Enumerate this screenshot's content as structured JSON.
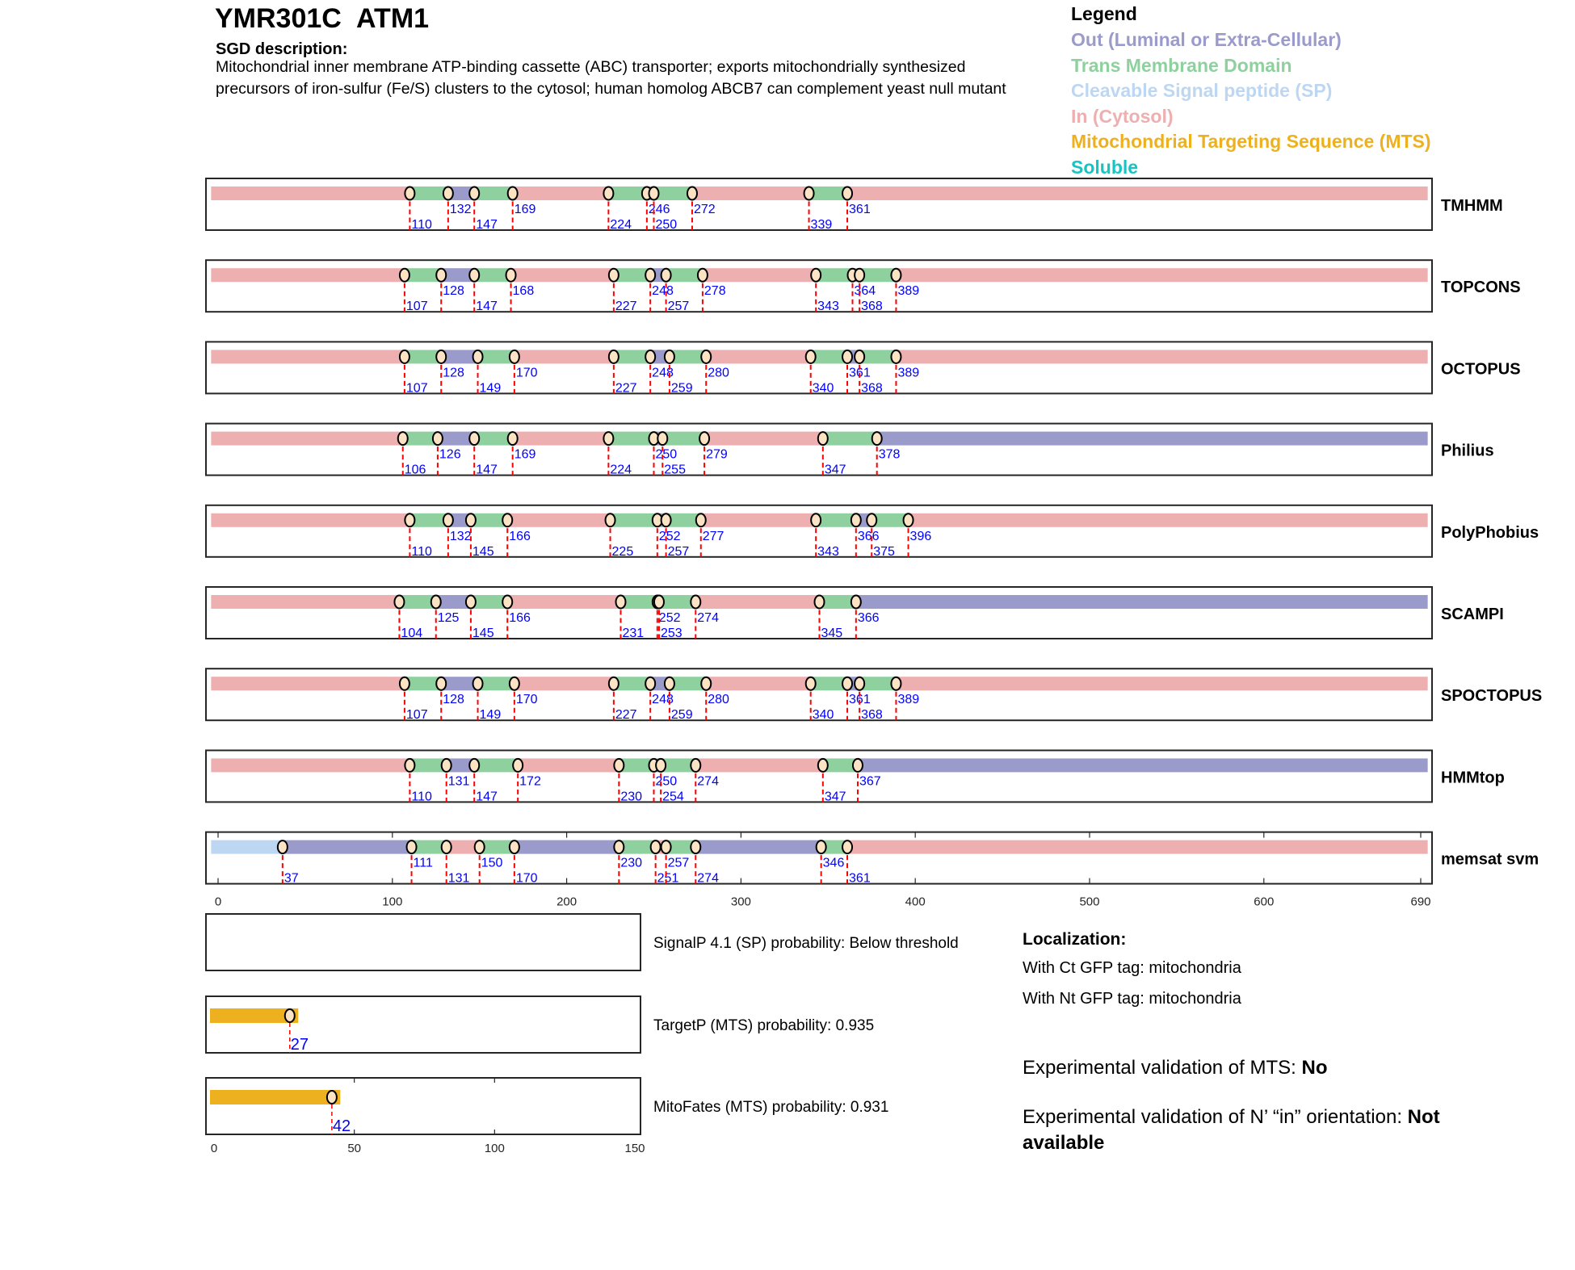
{
  "header": {
    "title": "YMR301C  ATM1",
    "sgd_heading": "SGD description:",
    "sgd_description": "Mitochondrial inner membrane ATP-binding cassette (ABC) transporter; exports mitochondrially synthesized precursors of iron-sulfur (Fe/S) clusters to the cytosol; human homolog ABCB7 can complement yeast null mutant"
  },
  "legend": {
    "title": "Legend",
    "items": [
      {
        "key": "out",
        "label": "Out (Luminal or Extra-Cellular)",
        "color": "#9b9bcb"
      },
      {
        "key": "tm",
        "label": "Trans Membrane Domain",
        "color": "#8fd19e"
      },
      {
        "key": "sp",
        "label": "Cleavable Signal peptide (SP)",
        "color": "#bdd7f3"
      },
      {
        "key": "in",
        "label": "In (Cytosol)",
        "color": "#eeafb0"
      },
      {
        "key": "mts",
        "label": "Mitochondrial Targeting Sequence (MTS)",
        "color": "#edb120"
      },
      {
        "key": "soluble",
        "label": "Soluble",
        "color": "#17c4c4"
      }
    ]
  },
  "chart_data": [
    {
      "type": "topology-tracks",
      "xlim": [
        0,
        690
      ],
      "xticks": [
        0,
        100,
        200,
        300,
        400,
        500,
        600,
        690
      ],
      "tracks": [
        {
          "name": "TMHMM",
          "regions": [
            [
              "in",
              0,
              110
            ],
            [
              "tm",
              110,
              132
            ],
            [
              "out",
              132,
              147
            ],
            [
              "tm",
              147,
              169
            ],
            [
              "in",
              169,
              224
            ],
            [
              "tm",
              224,
              246
            ],
            [
              "out",
              246,
              250
            ],
            [
              "tm",
              250,
              272
            ],
            [
              "in",
              272,
              339
            ],
            [
              "tm",
              339,
              361
            ],
            [
              "in",
              361,
              690
            ]
          ],
          "markers": [
            110,
            132,
            147,
            169,
            224,
            246,
            250,
            272,
            339,
            361
          ]
        },
        {
          "name": "TOPCONS",
          "regions": [
            [
              "in",
              0,
              107
            ],
            [
              "tm",
              107,
              128
            ],
            [
              "out",
              128,
              147
            ],
            [
              "tm",
              147,
              168
            ],
            [
              "in",
              168,
              227
            ],
            [
              "tm",
              227,
              248
            ],
            [
              "out",
              248,
              257
            ],
            [
              "tm",
              257,
              278
            ],
            [
              "in",
              278,
              343
            ],
            [
              "tm",
              343,
              364
            ],
            [
              "out",
              364,
              368
            ],
            [
              "tm",
              368,
              389
            ],
            [
              "in",
              389,
              690
            ]
          ],
          "markers": [
            107,
            128,
            147,
            168,
            227,
            248,
            257,
            278,
            343,
            364,
            368,
            389
          ]
        },
        {
          "name": "OCTOPUS",
          "regions": [
            [
              "in",
              0,
              107
            ],
            [
              "tm",
              107,
              128
            ],
            [
              "out",
              128,
              149
            ],
            [
              "tm",
              149,
              170
            ],
            [
              "in",
              170,
              227
            ],
            [
              "tm",
              227,
              248
            ],
            [
              "out",
              248,
              259
            ],
            [
              "tm",
              259,
              280
            ],
            [
              "in",
              280,
              340
            ],
            [
              "tm",
              340,
              361
            ],
            [
              "out",
              361,
              368
            ],
            [
              "tm",
              368,
              389
            ],
            [
              "in",
              389,
              690
            ]
          ],
          "markers": [
            107,
            128,
            149,
            170,
            227,
            248,
            259,
            280,
            340,
            361,
            368,
            389
          ]
        },
        {
          "name": "Philius",
          "regions": [
            [
              "in",
              0,
              106
            ],
            [
              "tm",
              106,
              126
            ],
            [
              "out",
              126,
              147
            ],
            [
              "tm",
              147,
              169
            ],
            [
              "in",
              169,
              224
            ],
            [
              "tm",
              224,
              250
            ],
            [
              "out",
              250,
              255
            ],
            [
              "tm",
              255,
              279
            ],
            [
              "in",
              279,
              347
            ],
            [
              "tm",
              347,
              378
            ],
            [
              "out",
              378,
              690
            ]
          ],
          "markers": [
            106,
            126,
            147,
            169,
            224,
            250,
            255,
            279,
            347,
            378
          ]
        },
        {
          "name": "PolyPhobius",
          "regions": [
            [
              "in",
              0,
              110
            ],
            [
              "tm",
              110,
              132
            ],
            [
              "out",
              132,
              145
            ],
            [
              "tm",
              145,
              166
            ],
            [
              "in",
              166,
              225
            ],
            [
              "tm",
              225,
              252
            ],
            [
              "out",
              252,
              257
            ],
            [
              "tm",
              257,
              277
            ],
            [
              "in",
              277,
              343
            ],
            [
              "tm",
              343,
              366
            ],
            [
              "out",
              366,
              375
            ],
            [
              "tm",
              375,
              396
            ],
            [
              "in",
              396,
              690
            ]
          ],
          "markers": [
            110,
            132,
            145,
            166,
            225,
            252,
            257,
            277,
            343,
            366,
            375,
            396
          ]
        },
        {
          "name": "SCAMPI",
          "regions": [
            [
              "in",
              0,
              104
            ],
            [
              "tm",
              104,
              125
            ],
            [
              "out",
              125,
              145
            ],
            [
              "tm",
              145,
              166
            ],
            [
              "in",
              166,
              231
            ],
            [
              "tm",
              231,
              252
            ],
            [
              "out",
              252,
              253
            ],
            [
              "tm",
              253,
              274
            ],
            [
              "in",
              274,
              345
            ],
            [
              "tm",
              345,
              366
            ],
            [
              "out",
              366,
              690
            ]
          ],
          "markers": [
            104,
            125,
            145,
            166,
            231,
            252,
            253,
            274,
            345,
            366
          ]
        },
        {
          "name": "SPOCTOPUS",
          "regions": [
            [
              "in",
              0,
              107
            ],
            [
              "tm",
              107,
              128
            ],
            [
              "out",
              128,
              149
            ],
            [
              "tm",
              149,
              170
            ],
            [
              "in",
              170,
              227
            ],
            [
              "tm",
              227,
              248
            ],
            [
              "out",
              248,
              259
            ],
            [
              "tm",
              259,
              280
            ],
            [
              "in",
              280,
              340
            ],
            [
              "tm",
              340,
              361
            ],
            [
              "out",
              361,
              368
            ],
            [
              "tm",
              368,
              389
            ],
            [
              "in",
              389,
              690
            ]
          ],
          "markers": [
            107,
            128,
            149,
            170,
            227,
            248,
            259,
            280,
            340,
            361,
            368,
            389
          ]
        },
        {
          "name": "HMMtop",
          "regions": [
            [
              "in",
              0,
              110
            ],
            [
              "tm",
              110,
              131
            ],
            [
              "out",
              131,
              147
            ],
            [
              "tm",
              147,
              172
            ],
            [
              "in",
              172,
              230
            ],
            [
              "tm",
              230,
              250
            ],
            [
              "out",
              250,
              254
            ],
            [
              "tm",
              254,
              274
            ],
            [
              "in",
              274,
              347
            ],
            [
              "tm",
              347,
              367
            ],
            [
              "out",
              367,
              690
            ]
          ],
          "markers": [
            110,
            131,
            147,
            172,
            230,
            250,
            254,
            274,
            347,
            367
          ]
        },
        {
          "name": "memsat svm",
          "regions": [
            [
              "sp",
              0,
              37
            ],
            [
              "out",
              37,
              111
            ],
            [
              "tm",
              111,
              131
            ],
            [
              "in",
              131,
              150
            ],
            [
              "tm",
              150,
              170
            ],
            [
              "out",
              170,
              230
            ],
            [
              "tm",
              230,
              251
            ],
            [
              "in",
              251,
              257
            ],
            [
              "tm",
              257,
              274
            ],
            [
              "out",
              274,
              346
            ],
            [
              "tm",
              346,
              361
            ],
            [
              "in",
              361,
              690
            ]
          ],
          "markers": [
            37,
            111,
            131,
            150,
            170,
            230,
            251,
            257,
            274,
            346,
            361
          ]
        }
      ]
    },
    {
      "type": "mts-sp-panels",
      "xlim": [
        0,
        150
      ],
      "xticks": [
        0,
        50,
        100,
        150
      ],
      "panels": [
        {
          "label": "SignalP 4.1 (SP) probability: Below threshold",
          "regions": [],
          "markers": []
        },
        {
          "label": "TargetP (MTS) probability: 0.935",
          "regions": [
            [
              "mts",
              0,
              30
            ]
          ],
          "markers": [
            27
          ]
        },
        {
          "label": "MitoFates (MTS) probability: 0.931",
          "regions": [
            [
              "mts",
              0,
              45
            ]
          ],
          "markers": [
            42
          ]
        }
      ]
    }
  ],
  "localization": {
    "heading": "Localization:",
    "ct": "With Ct GFP tag: mitochondria",
    "nt": "With Nt GFP tag: mitochondria"
  },
  "validation": {
    "mts_label": "Experimental validation of MTS: ",
    "mts_value": "No",
    "orient_label": "Experimental validation of N’ “in” orientation: ",
    "orient_value": "Not available"
  }
}
